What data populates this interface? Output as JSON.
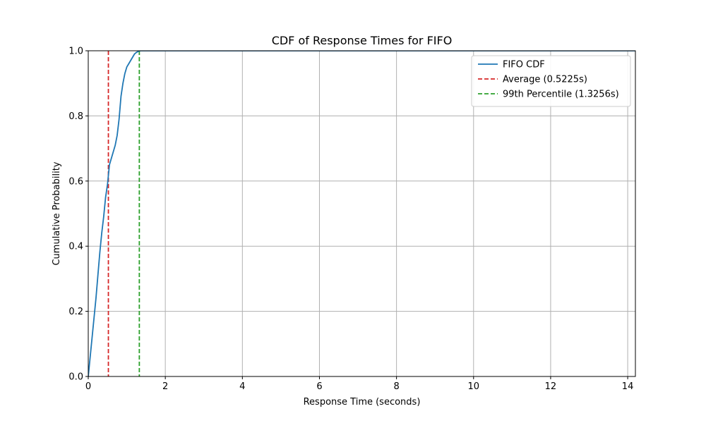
{
  "chart_data": {
    "type": "line",
    "title": "CDF of Response Times for FIFO",
    "xlabel": "Response Time (seconds)",
    "ylabel": "Cumulative Probability",
    "xlim": [
      0,
      14.2
    ],
    "ylim": [
      0,
      1.0
    ],
    "x_ticks": [
      0,
      2,
      4,
      6,
      8,
      10,
      12,
      14
    ],
    "y_ticks": [
      0.0,
      0.2,
      0.4,
      0.6,
      0.8,
      1.0
    ],
    "x_tick_labels": [
      "0",
      "2",
      "4",
      "6",
      "8",
      "10",
      "12",
      "14"
    ],
    "y_tick_labels": [
      "0.0",
      "0.2",
      "0.4",
      "0.6",
      "0.8",
      "1.0"
    ],
    "grid": true,
    "legend_position": "top-right",
    "series": [
      {
        "name": "FIFO CDF",
        "color": "#1f77b4",
        "style": "solid",
        "x": [
          0,
          0.05,
          0.1,
          0.15,
          0.2,
          0.25,
          0.3,
          0.35,
          0.4,
          0.45,
          0.5,
          0.55,
          0.6,
          0.65,
          0.7,
          0.75,
          0.8,
          0.85,
          0.9,
          0.95,
          1.0,
          1.05,
          1.1,
          1.15,
          1.2,
          1.25,
          1.3,
          1.35,
          1.4,
          1.5,
          2.0,
          14.2
        ],
        "y": [
          0,
          0.06,
          0.12,
          0.18,
          0.24,
          0.31,
          0.38,
          0.44,
          0.49,
          0.55,
          0.59,
          0.65,
          0.67,
          0.69,
          0.71,
          0.74,
          0.79,
          0.86,
          0.9,
          0.93,
          0.95,
          0.96,
          0.97,
          0.98,
          0.99,
          0.995,
          0.998,
          1.0,
          1.0,
          1.0,
          1.0,
          1.0
        ]
      }
    ],
    "reference_lines": [
      {
        "name": "Average (0.5225s)",
        "x": 0.5225,
        "color": "#d62728",
        "style": "dashed"
      },
      {
        "name": "99th Percentile (1.3256s)",
        "x": 1.3256,
        "color": "#2ca02c",
        "style": "dashed"
      }
    ]
  }
}
